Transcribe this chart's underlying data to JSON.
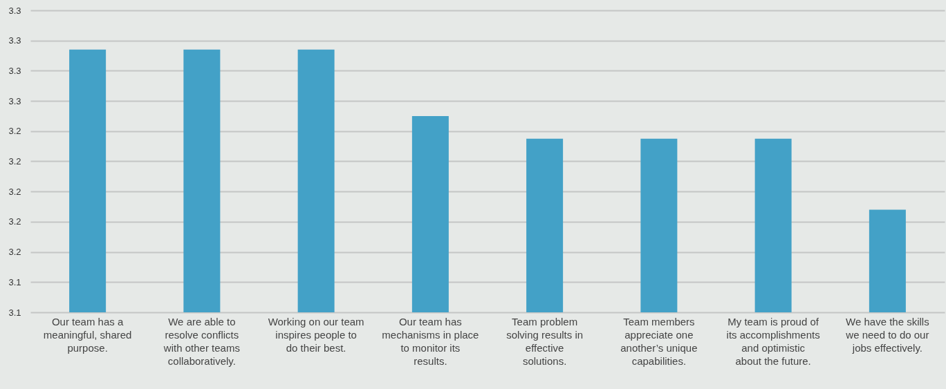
{
  "chart_data": {
    "type": "bar",
    "categories": [
      "Our team has a meaningful, shared purpose.",
      "We are able to resolve conflicts with other teams collaboratively.",
      "Working on our team inspires people to do their best.",
      "Our team has mechanisms in place to monitor its results.",
      "Team problem solving results in effective solutions.",
      "Team members appreciate one another’s unique capabilities.",
      "My team is proud of its accomplishments and optimistic about the future.",
      "We have the skills we need to do our jobs effectively."
    ],
    "values": [
      3.294,
      3.294,
      3.294,
      3.25,
      3.235,
      3.235,
      3.235,
      3.188
    ],
    "color": "#43a1c7",
    "ylim": [
      3.12,
      3.32
    ],
    "yticks": [
      {
        "value": 3.12,
        "label": "3.1"
      },
      {
        "value": 3.14,
        "label": "3.1"
      },
      {
        "value": 3.16,
        "label": "3.2"
      },
      {
        "value": 3.18,
        "label": "3.2"
      },
      {
        "value": 3.2,
        "label": "3.2"
      },
      {
        "value": 3.22,
        "label": "3.2"
      },
      {
        "value": 3.24,
        "label": "3.2"
      },
      {
        "value": 3.26,
        "label": "3.3"
      },
      {
        "value": 3.28,
        "label": "3.3"
      },
      {
        "value": 3.3,
        "label": "3.3"
      },
      {
        "value": 3.32,
        "label": "3.3"
      }
    ],
    "grid": "y"
  }
}
